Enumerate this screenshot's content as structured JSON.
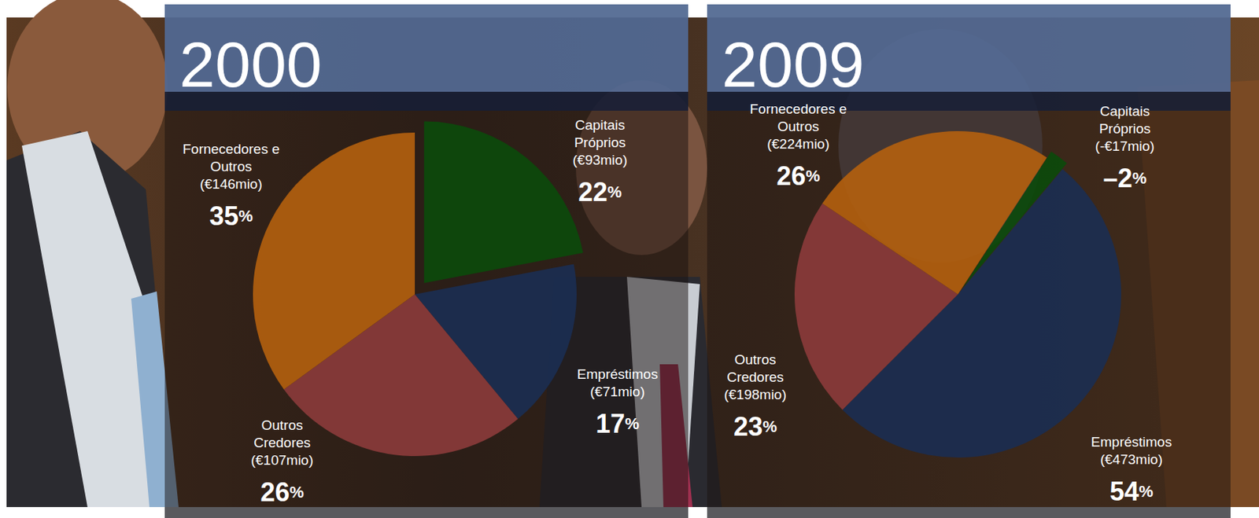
{
  "chart_data": [
    {
      "type": "pie",
      "title": "2000",
      "categories": [
        "Capitais Próprios",
        "Empréstimos",
        "Outros Credores",
        "Fornecedores e Outros"
      ],
      "values": [
        22,
        17,
        26,
        35
      ],
      "value_labels": [
        "22%",
        "17%",
        "26%",
        "35%"
      ],
      "amount_labels": [
        "(€93mio)",
        "(€71mio)",
        "(€107mio)",
        "(€146mio)"
      ],
      "colors": [
        "#0b4a0b",
        "#1b2d52",
        "#8c3b3b",
        "#b5600e"
      ],
      "data_labels": true
    },
    {
      "type": "pie",
      "title": "2009",
      "categories": [
        "Capitais Próprios",
        "Empréstimos",
        "Outros Credores",
        "Fornecedores e Outros"
      ],
      "values": [
        -2,
        54,
        23,
        26
      ],
      "value_labels": [
        "–2%",
        "54%",
        "23%",
        "26%"
      ],
      "amount_labels": [
        "(-€17mio)",
        "(€473mio)",
        "(€198mio)",
        "(€224mio)"
      ],
      "colors": [
        "#0b4a0b",
        "#1b2d52",
        "#8c3b3b",
        "#b5600e"
      ],
      "data_labels": true
    }
  ]
}
